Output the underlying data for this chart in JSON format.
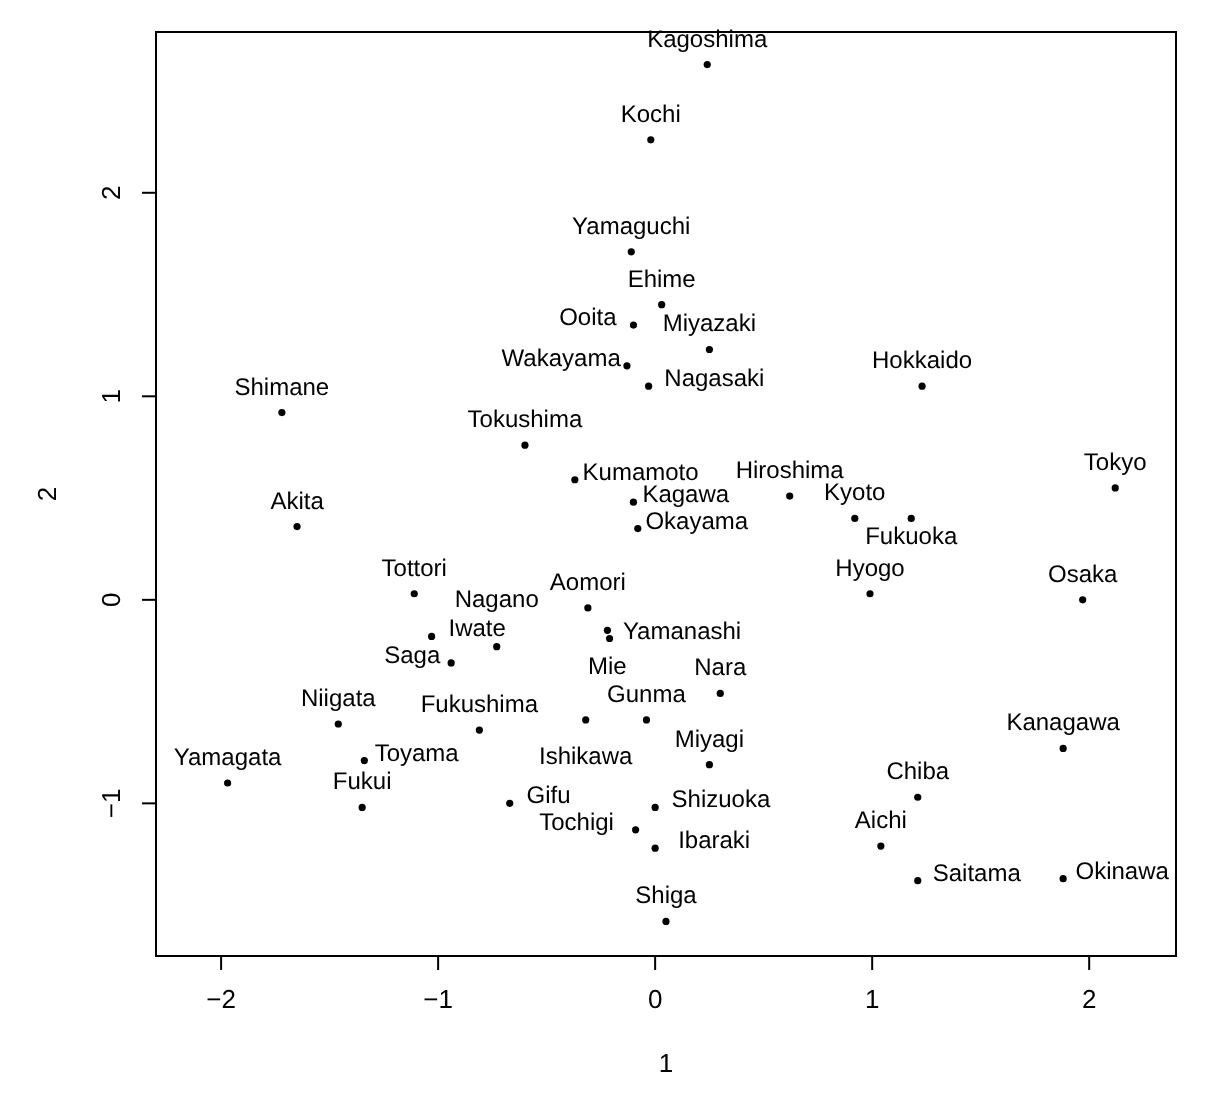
{
  "chart_data": {
    "type": "scatter",
    "xlabel": "1",
    "ylabel": "2",
    "marker": "circle",
    "grid": false,
    "xlim": [
      -2.3,
      2.4
    ],
    "ylim": [
      -1.75,
      2.79
    ],
    "xticks": [
      -2,
      -1,
      0,
      1,
      2
    ],
    "yticks": [
      -1,
      0,
      1,
      2
    ],
    "x": [
      0.24,
      -0.02,
      -0.11,
      0.03,
      -0.1,
      0.25,
      -0.13,
      -0.03,
      1.23,
      -1.72,
      -0.6,
      -0.37,
      -0.1,
      -0.08,
      -1.65,
      0.62,
      0.92,
      1.18,
      2.12,
      -1.11,
      -0.31,
      -1.03,
      -0.73,
      -0.94,
      -0.21,
      -0.22,
      0.3,
      -1.46,
      -0.81,
      -0.32,
      -0.04,
      -1.34,
      0.25,
      1.88,
      -1.97,
      -1.35,
      -0.67,
      0.0,
      -0.09,
      0.0,
      1.21,
      1.04,
      1.21,
      1.88,
      0.05,
      0.99,
      1.97
    ],
    "values": [
      2.63,
      2.26,
      1.71,
      1.45,
      1.35,
      1.23,
      1.15,
      1.05,
      1.05,
      0.92,
      0.76,
      0.59,
      0.48,
      0.35,
      0.36,
      0.51,
      0.4,
      0.4,
      0.55,
      0.03,
      -0.04,
      -0.18,
      -0.23,
      -0.31,
      -0.19,
      -0.15,
      -0.46,
      -0.61,
      -0.64,
      -0.59,
      -0.59,
      -0.79,
      -0.81,
      -0.73,
      -0.9,
      -1.02,
      -1.0,
      -1.02,
      -1.13,
      -1.22,
      -0.97,
      -1.21,
      -1.38,
      -1.37,
      -1.58,
      0.03,
      0.0
    ],
    "value_labels": [
      "Kagoshima",
      "Kochi",
      "Yamaguchi",
      "Ehime",
      "Ooita",
      "Miyazaki",
      "Wakayama",
      "Nagasaki",
      "Hokkaido",
      "Shimane",
      "Tokushima",
      "Kumamoto",
      "Kagawa",
      "Okayama",
      "Akita",
      "Hiroshima",
      "Kyoto",
      "Fukuoka",
      "Tokyo",
      "Tottori",
      "Aomori",
      "Iwate",
      "Nagano",
      "Saga",
      "Yamanashi",
      "Mie",
      "Nara",
      "Niigata",
      "Fukushima",
      "Ishikawa",
      "Gunma",
      "Toyama",
      "Miyagi",
      "Kanagawa",
      "Yamagata",
      "Fukui",
      "Gifu",
      "Shizuoka",
      "Tochigi",
      "Ibaraki",
      "Chiba",
      "Aichi",
      "Saitama",
      "Okinawa",
      "Shiga",
      "Hyogo",
      "Osaka"
    ]
  }
}
